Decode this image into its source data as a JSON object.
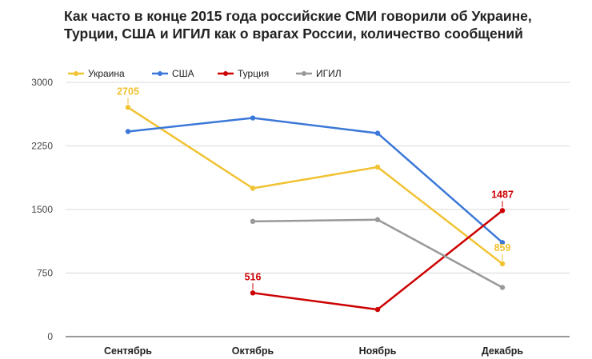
{
  "chart_data": {
    "type": "line",
    "title": "Как часто в конце 2015 года российские СМИ говорили об Украине, Турции, США и ИГИЛ как о врагах России, количество сообщений",
    "categories": [
      "Сентябрь",
      "Октябрь",
      "Ноябрь",
      "Декабрь"
    ],
    "xlabel": "",
    "ylabel": "",
    "ylim": [
      0,
      3000
    ],
    "yticks": [
      0,
      750,
      1500,
      2250,
      3000
    ],
    "grid": true,
    "legend_position": "top-left",
    "series": [
      {
        "name": "Украина",
        "color": "#f1c232",
        "values": [
          2705,
          1750,
          2000,
          859
        ],
        "data_labels": [
          2705,
          null,
          null,
          859
        ]
      },
      {
        "name": "США",
        "color": "#3c78d8",
        "values": [
          2420,
          2580,
          2400,
          1110
        ],
        "data_labels": [
          null,
          null,
          null,
          null
        ]
      },
      {
        "name": "Турция",
        "color": "#cc0000",
        "values": [
          null,
          516,
          320,
          1487
        ],
        "data_labels": [
          null,
          516,
          null,
          1487
        ]
      },
      {
        "name": "ИГИЛ",
        "color": "#999999",
        "values": [
          null,
          1360,
          1380,
          580
        ],
        "data_labels": [
          null,
          null,
          null,
          null
        ]
      }
    ]
  }
}
